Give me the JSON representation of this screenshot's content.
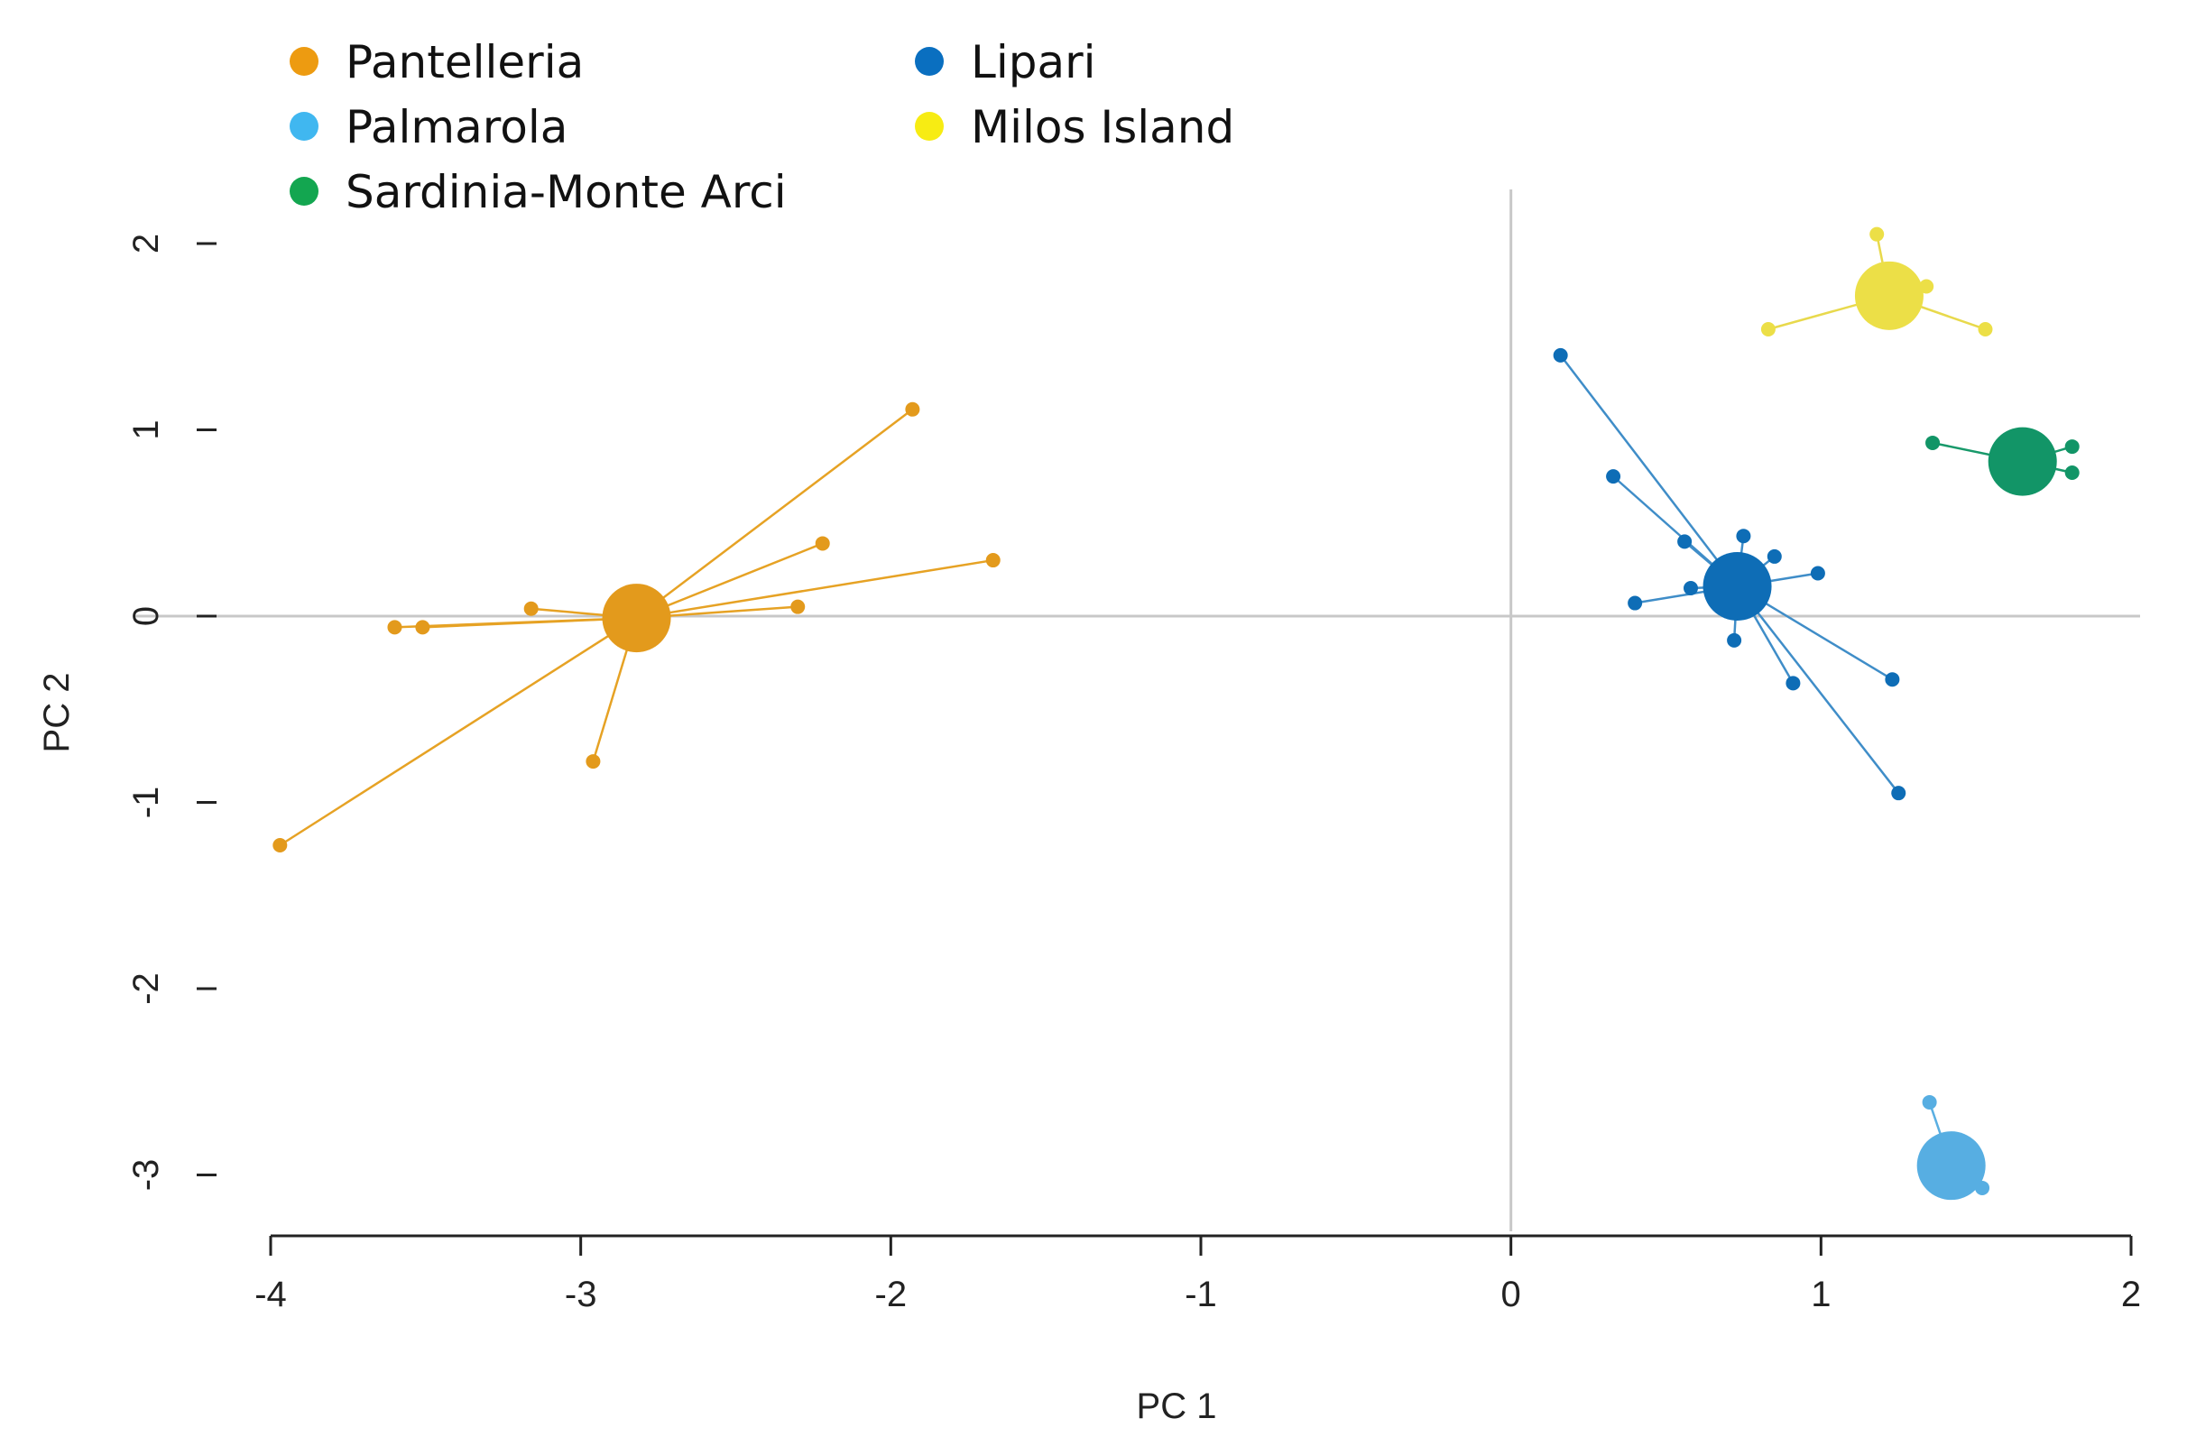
{
  "chart_data": {
    "type": "scatter",
    "title": "",
    "xlabel": "PC 1",
    "ylabel": "PC 2",
    "xlim": [
      -4,
      2
    ],
    "ylim": [
      -3.3,
      2.3
    ],
    "xticks": [
      "-4",
      "-3",
      "-2",
      "-1",
      "0",
      "1",
      "2"
    ],
    "yticks": [
      "-3",
      "-2",
      "-1",
      "0",
      "1",
      "2"
    ],
    "reference_lines": {
      "x": 0,
      "y": 0
    },
    "legend": {
      "placement": "top-left",
      "entries": [
        {
          "label": "Pantelleria",
          "color": "#ED9B11"
        },
        {
          "label": "Lipari",
          "color": "#0A6FC0"
        },
        {
          "label": "Palmarola",
          "color": "#40B7F0"
        },
        {
          "label": "Milos Island",
          "color": "#F7EC13"
        },
        {
          "label": "Sardinia-Monte Arci",
          "color": "#13A650"
        }
      ]
    },
    "series": [
      {
        "name": "Pantelleria",
        "line_color": "#E6A224",
        "point_color": "#E39A1C",
        "centroid": [
          -2.82,
          -0.01
        ],
        "points": [
          [
            -1.93,
            1.11
          ],
          [
            -2.22,
            0.39
          ],
          [
            -1.67,
            0.3
          ],
          [
            -2.3,
            0.05
          ],
          [
            -3.16,
            0.04
          ],
          [
            -3.6,
            -0.06
          ],
          [
            -3.51,
            -0.06
          ],
          [
            -2.96,
            -0.78
          ],
          [
            -3.97,
            -1.23
          ]
        ]
      },
      {
        "name": "Lipari",
        "line_color": "#3F8DC8",
        "point_color": "#0E6DB6",
        "centroid": [
          0.73,
          0.16
        ],
        "points": [
          [
            0.16,
            1.4
          ],
          [
            0.33,
            0.75
          ],
          [
            0.56,
            0.4
          ],
          [
            0.75,
            0.43
          ],
          [
            0.85,
            0.32
          ],
          [
            0.99,
            0.23
          ],
          [
            0.58,
            0.15
          ],
          [
            0.4,
            0.07
          ],
          [
            0.72,
            -0.13
          ],
          [
            0.91,
            -0.36
          ],
          [
            1.23,
            -0.34
          ],
          [
            1.25,
            -0.95
          ]
        ]
      },
      {
        "name": "Palmarola",
        "line_color": "#5AAFE2",
        "point_color": "#57AEE2",
        "centroid": [
          1.42,
          -2.95
        ],
        "points": [
          [
            1.35,
            -2.61
          ],
          [
            1.52,
            -3.07
          ]
        ]
      },
      {
        "name": "Milos Island",
        "line_color": "#E8D94C",
        "point_color": "#ECDF47",
        "centroid": [
          1.22,
          1.72
        ],
        "points": [
          [
            1.18,
            2.05
          ],
          [
            1.34,
            1.77
          ],
          [
            1.53,
            1.54
          ],
          [
            0.83,
            1.54
          ]
        ]
      },
      {
        "name": "Sardinia-Monte Arci",
        "line_color": "#18996A",
        "point_color": "#129567",
        "centroid": [
          1.65,
          0.83
        ],
        "points": [
          [
            1.36,
            0.93
          ],
          [
            1.81,
            0.91
          ],
          [
            1.81,
            0.77
          ]
        ]
      }
    ]
  }
}
